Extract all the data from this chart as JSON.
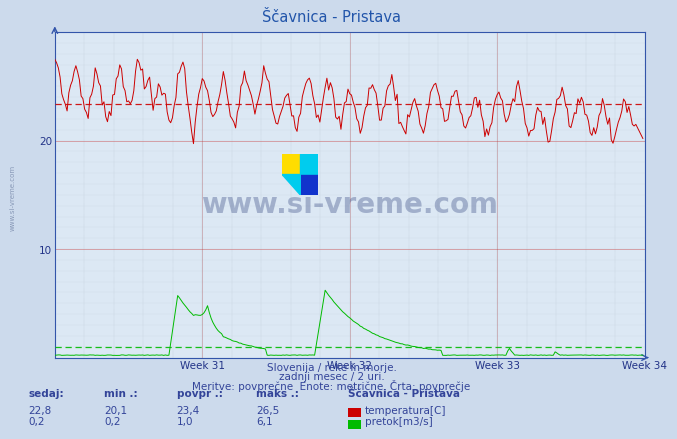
{
  "title": "Ščavnica - Pristava",
  "bg_color": "#ccdaec",
  "plot_bg_color": "#dce8f4",
  "grid_color": "#b0bece",
  "grid_minor_color": "#c8d4e0",
  "xlabel_weeks": [
    "Week 31",
    "Week 32",
    "Week 33",
    "Week 34"
  ],
  "ylim": [
    0,
    30
  ],
  "n_points": 336,
  "temp_color": "#cc0000",
  "flow_color": "#00bb00",
  "avg_line_color_temp": "#cc0000",
  "avg_line_color_flow": "#00bb00",
  "temp_avg": 23.4,
  "flow_avg": 1.0,
  "temp_min": 20.1,
  "temp_max": 26.5,
  "flow_min": 0.2,
  "flow_max": 6.1,
  "temp_sedaj": 22.8,
  "flow_sedaj": 0.2,
  "subtitle1": "Slovenija / reke in morje.",
  "subtitle2": "zadnji mesec / 2 uri.",
  "subtitle3": "Meritve: povprečne  Enote: metrične  Črta: povprečje",
  "legend_title": "Ščavnica - Pristava",
  "watermark": "www.si-vreme.com",
  "side_watermark": "www.si-vreme.com",
  "axis_color": "#3355aa",
  "tick_color": "#223388",
  "subtitle_color": "#334499",
  "legend_color": "#334499"
}
